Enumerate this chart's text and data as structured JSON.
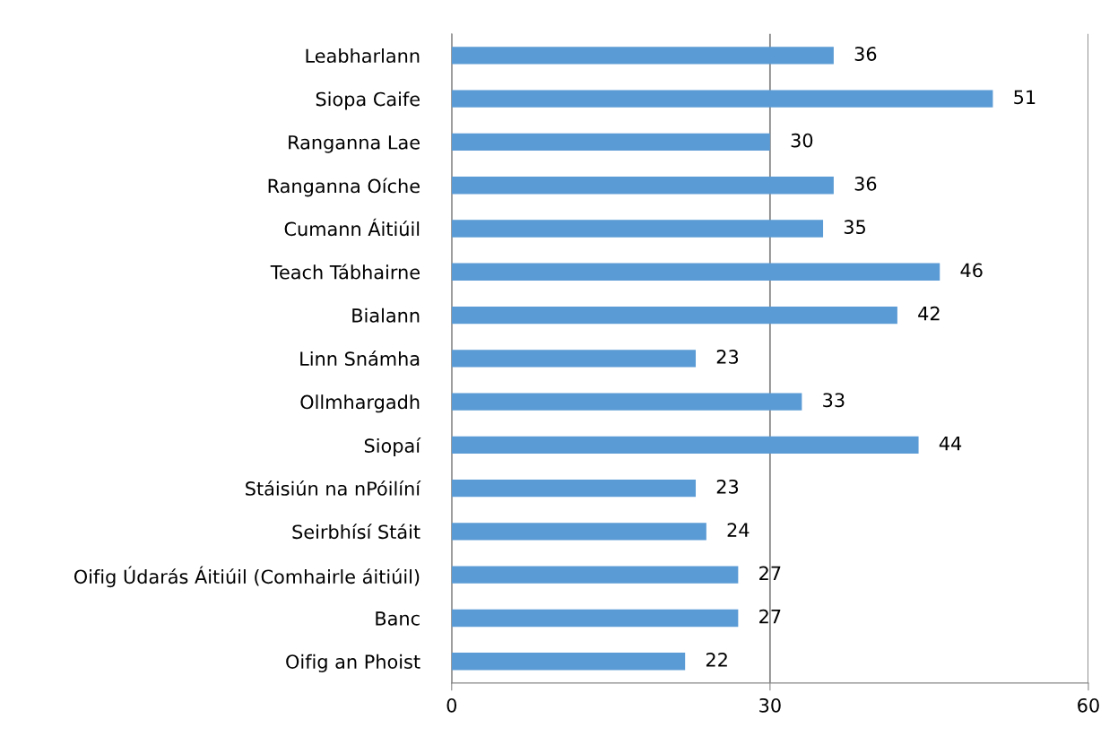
{
  "chart_data": {
    "type": "bar",
    "orientation": "horizontal",
    "categories": [
      "Leabharlann",
      "Siopa Caife",
      "Ranganna Lae",
      "Ranganna Oíche",
      "Cumann Áitiúil",
      "Teach Tábhairne",
      "Bialann",
      "Linn Snámha",
      "Ollmhargadh",
      "Siopaí",
      "Stáisiún na nPóilíní",
      "Seirbhísí Stáit",
      "Oifig Údarás Áitiúil (Comhairle áitiúil)",
      "Banc",
      "Oifig an Phoist"
    ],
    "values": [
      36,
      51,
      30,
      36,
      35,
      46,
      42,
      23,
      33,
      44,
      23,
      24,
      27,
      27,
      22
    ],
    "color": "#5b9bd5",
    "xlim": [
      0,
      60
    ],
    "xticks": [
      0,
      30,
      60
    ],
    "grid": "x",
    "data_labels": true,
    "legend": false
  }
}
